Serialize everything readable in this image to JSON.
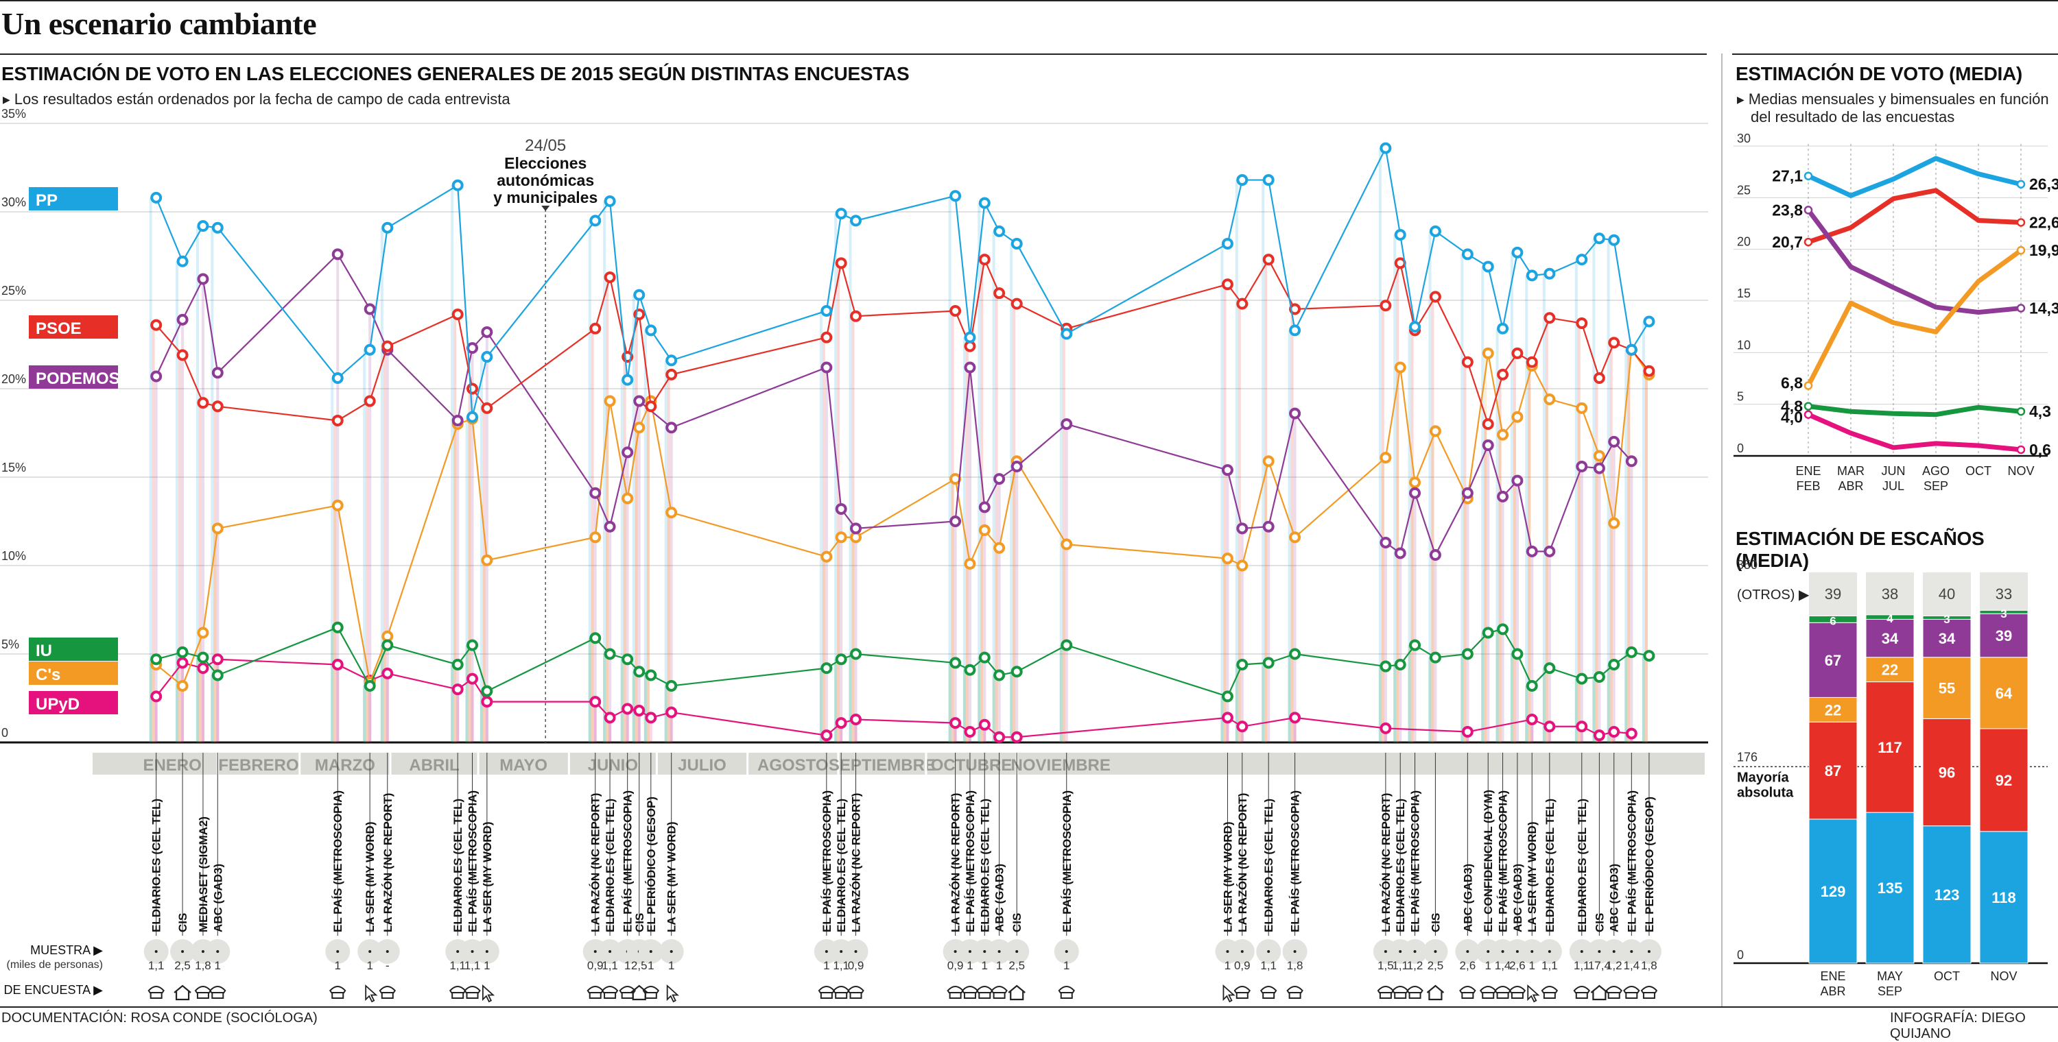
{
  "header": {
    "title": "Un escenario cambiante"
  },
  "main": {
    "title": "ESTIMACIÓN DE VOTO EN LAS ELECCIONES GENERALES DE 2015 SEGÚN DISTINTAS ENCUESTAS",
    "subtitle": "Los resultados están ordenados por la fecha de campo de cada entrevista",
    "annotation": {
      "date": "24/05",
      "lines": [
        "Elecciones",
        "autonómicas",
        "y municipales"
      ]
    },
    "muestra_label": "MUESTRA",
    "muestra_sub": "(miles de personas)",
    "tipo_label": "TIPO DE ENCUESTA"
  },
  "side": {
    "title1": "ESTIMACIÓN DE VOTO (MEDIA)",
    "sub1_lines": [
      "Medias mensuales y bimensuales en función",
      "del resultado de las encuestas"
    ],
    "title2": "ESTIMACIÓN DE ESCAÑOS (MEDIA)",
    "otros_label": "(OTROS)",
    "mayoria_lines": [
      "Mayoría",
      "absoluta"
    ]
  },
  "footer": {
    "left": "DOCUMENTACIÓN: ROSA CONDE (SOCIÓLOGA)",
    "right": "INFOGRAFÍA: DIEGO QUIJANO"
  },
  "colors": {
    "PP": "#1ba4e0",
    "PSOE": "#e63027",
    "PODEMOS": "#8e3a96",
    "IU": "#15963f",
    "Cs": "#f29a24",
    "UPyD": "#e5127d"
  },
  "chart_data": [
    {
      "type": "line",
      "title": "ESTIMACIÓN DE VOTO EN LAS ELECCIONES GENERALES DE 2015 SEGÚN DISTINTAS ENCUESTAS",
      "ylim": [
        0,
        35
      ],
      "yticks": [
        0,
        5,
        10,
        15,
        20,
        25,
        30,
        35
      ],
      "ytick_labels": [
        "0",
        "5%",
        "10%",
        "15%",
        "20%",
        "25%",
        "30%",
        "35%"
      ],
      "grid": true,
      "months": [
        "ENERO",
        "FEBRERO",
        "MARZO",
        "ABRIL",
        "MAYO",
        "JUNIO",
        "JULIO",
        "AGOSTO",
        "SEPTIEMBRE",
        "OCTUBRE",
        "NOVIEMBRE"
      ],
      "polls": [
        {
          "label": "ELDIARIO.ES (CEL TEL)",
          "muestra": "1,1",
          "tipo": "tel",
          "day": 10
        },
        {
          "label": "CIS",
          "muestra": "2,5",
          "tipo": "house",
          "day": 19
        },
        {
          "label": "MEDIASET (SIGMA2)",
          "muestra": "1,8",
          "tipo": "tel",
          "day": 26
        },
        {
          "label": "ABC (GAD3)",
          "muestra": "1",
          "tipo": "tel",
          "day": 31
        },
        {
          "label": "EL PAÍS (METROSCOPIA)",
          "muestra": "1",
          "tipo": "tel",
          "day": 72
        },
        {
          "label": "LA SER (MY WORD)",
          "muestra": "1",
          "tipo": "cursor",
          "day": 83
        },
        {
          "label": "LA RAZÓN (NC REPORT)",
          "muestra": "-",
          "tipo": "tel",
          "day": 89
        },
        {
          "label": "ELDIARIO.ES (CEL TEL)",
          "muestra": "1,1",
          "tipo": "tel",
          "day": 113
        },
        {
          "label": "EL PAÍS (METROSCOPIA)",
          "muestra": "1,1",
          "tipo": "tel",
          "day": 118
        },
        {
          "label": "LA SER (MY WORD)",
          "muestra": "1",
          "tipo": "cursor",
          "day": 123
        },
        {
          "label": "LA RAZÓN (NC REPORT)",
          "muestra": "0,9",
          "tipo": "tel",
          "day": 160
        },
        {
          "label": "ELDIARIO.ES (CEL TEL)",
          "muestra": "1,1",
          "tipo": "tel",
          "day": 165
        },
        {
          "label": "EL PAÍS (METROSCOPIA)",
          "muestra": "1",
          "tipo": "tel",
          "day": 171
        },
        {
          "label": "CIS",
          "muestra": "2,5",
          "tipo": "house",
          "day": 175
        },
        {
          "label": "EL PERIÓDICO (GESOP)",
          "muestra": "1",
          "tipo": "tel",
          "day": 179
        },
        {
          "label": "LA SER (MY WORD)",
          "muestra": "1",
          "tipo": "cursor",
          "day": 186
        },
        {
          "label": "EL PAÍS (METROSCOPIA)",
          "muestra": "1",
          "tipo": "tel",
          "day": 239
        },
        {
          "label": "ELDIARIO.ES (CEL TEL)",
          "muestra": "1,1",
          "tipo": "tel",
          "day": 244
        },
        {
          "label": "LA RAZÓN (NC REPORT)",
          "muestra": "0,9",
          "tipo": "tel",
          "day": 249
        },
        {
          "label": "LA RAZÓN (NC REPORT)",
          "muestra": "0,9",
          "tipo": "tel",
          "day": 283
        },
        {
          "label": "EL PAÍS (METROSCOPIA)",
          "muestra": "1",
          "tipo": "tel",
          "day": 288
        },
        {
          "label": "ELDIARIO.ES (CEL TEL)",
          "muestra": "1",
          "tipo": "tel",
          "day": 293
        },
        {
          "label": "ABC (GAD3)",
          "muestra": "1",
          "tipo": "tel",
          "day": 298
        },
        {
          "label": "CIS",
          "muestra": "2,5",
          "tipo": "house",
          "day": 304
        },
        {
          "label": "EL PAÍS (METROSCOPIA)",
          "muestra": "1",
          "tipo": "tel",
          "day": 321
        },
        {
          "label": "LA SER (MY WORD)",
          "muestra": "1",
          "tipo": "cursor",
          "day": 376
        },
        {
          "label": "LA RAZÓN (NC REPORT)",
          "muestra": "0,9",
          "tipo": "tel",
          "day": 381
        },
        {
          "label": "ELDIARIO.ES (CEL TEL)",
          "muestra": "1,1",
          "tipo": "tel",
          "day": 390
        },
        {
          "label": "EL PAÍS (METROSCOPIA)",
          "muestra": "1,8",
          "tipo": "tel",
          "day": 399
        },
        {
          "label": "LA RAZÓN (NC REPORT)",
          "muestra": "1,5",
          "tipo": "tel",
          "day": 430
        },
        {
          "label": "ELDIARIO.ES (CEL TEL)",
          "muestra": "1,1",
          "tipo": "tel",
          "day": 435
        },
        {
          "label": "EL PAÍS (METROSCOPIA)",
          "muestra": "1,2",
          "tipo": "tel",
          "day": 440
        },
        {
          "label": "CIS",
          "muestra": "2,5",
          "tipo": "house",
          "day": 447
        },
        {
          "label": "ABC (GAD3)",
          "muestra": "2,6",
          "tipo": "tel",
          "day": 458
        },
        {
          "label": "EL CONFIDENCIAL (DYM)",
          "muestra": "1",
          "tipo": "tel",
          "day": 465
        },
        {
          "label": "EL PAÍS (METROSCOPIA)",
          "muestra": "1,4",
          "tipo": "tel",
          "day": 470
        },
        {
          "label": "ABC (GAD3)",
          "muestra": "2,6",
          "tipo": "tel",
          "day": 475
        },
        {
          "label": "LA SER (MY WORD)",
          "muestra": "1",
          "tipo": "cursor",
          "day": 480
        },
        {
          "label": "ELDIARIO.ES (CEL TEL)",
          "muestra": "1,1",
          "tipo": "tel",
          "day": 486
        },
        {
          "label": "ELDIARIO.ES (CEL TEL)",
          "muestra": "1,1",
          "tipo": "tel",
          "day": 497
        },
        {
          "label": "CIS",
          "muestra": "17,4",
          "tipo": "house",
          "day": 503
        },
        {
          "label": "ABC (GAD3)",
          "muestra": "1,2",
          "tipo": "tel",
          "day": 508
        },
        {
          "label": "EL PAÍS (METROSCOPIA)",
          "muestra": "1,4",
          "tipo": "tel",
          "day": 514
        },
        {
          "label": "EL PERIÓDICO (GESOP)",
          "muestra": "1,8",
          "tipo": "tel",
          "day": 520
        }
      ],
      "series": [
        {
          "name": "PP",
          "values": [
            30.8,
            27.2,
            29.2,
            29.1,
            20.6,
            22.2,
            29.1,
            31.5,
            18.4,
            21.8,
            29.5,
            30.6,
            20.5,
            25.3,
            23.3,
            21.6,
            24.4,
            29.9,
            29.5,
            30.9,
            22.9,
            30.5,
            28.9,
            28.2,
            23.1,
            28.2,
            31.8,
            31.8,
            23.3,
            33.6,
            28.7,
            23.5,
            28.9,
            27.6,
            26.9,
            23.4,
            27.7,
            26.4,
            26.5,
            27.3,
            28.5,
            28.4,
            22.2,
            23.8
          ]
        },
        {
          "name": "PSOE",
          "values": [
            23.6,
            21.9,
            19.2,
            19.0,
            18.2,
            19.3,
            22.4,
            24.2,
            20.0,
            18.9,
            23.4,
            26.3,
            21.8,
            24.2,
            19.0,
            20.8,
            22.9,
            27.1,
            24.1,
            24.4,
            22.4,
            27.3,
            25.4,
            24.8,
            23.4,
            25.9,
            24.8,
            27.3,
            24.5,
            24.7,
            27.1,
            23.3,
            25.2,
            21.5,
            18.0,
            20.8,
            22.0,
            21.5,
            24.0,
            23.7,
            20.6,
            22.6,
            22.2,
            21.0
          ]
        },
        {
          "name": "PODEMOS",
          "values": [
            20.7,
            23.9,
            26.2,
            20.9,
            27.6,
            24.5,
            22.2,
            18.2,
            22.3,
            23.2,
            14.1,
            12.2,
            16.4,
            19.3,
            17.8,
            21.2,
            13.2,
            12.1,
            12.5,
            21.2,
            13.3,
            14.9,
            15.6,
            18.0,
            15.4,
            12.1,
            12.2,
            18.6,
            11.3,
            10.7,
            14.1,
            10.6,
            14.1,
            16.8,
            13.9,
            14.8,
            10.8,
            10.8,
            15.6,
            15.5,
            17.0,
            15.9
          ]
        },
        {
          "name": "IU",
          "values": [
            4.7,
            5.1,
            4.8,
            3.8,
            6.5,
            3.2,
            5.5,
            4.4,
            5.5,
            2.9,
            5.9,
            5.0,
            4.7,
            4.0,
            3.8,
            3.2,
            4.2,
            4.7,
            5.0,
            4.5,
            4.1,
            4.8,
            3.8,
            4.0,
            5.5,
            2.6,
            4.4,
            4.5,
            5.0,
            4.3,
            4.4,
            5.5,
            4.8,
            5.0,
            6.2,
            6.4,
            5.0,
            3.2,
            4.2,
            3.6,
            3.7,
            4.4,
            5.1,
            4.9
          ]
        },
        {
          "name": "C's",
          "values": [
            4.4,
            3.2,
            6.2,
            12.1,
            13.4,
            3.4,
            6.0,
            18.0,
            18.3,
            10.3,
            11.6,
            19.3,
            13.8,
            17.8,
            19.3,
            13.0,
            10.5,
            11.6,
            11.6,
            14.9,
            10.1,
            12.0,
            11.0,
            15.9,
            11.2,
            10.4,
            10.0,
            15.9,
            11.6,
            16.1,
            21.2,
            14.7,
            17.6,
            13.8,
            22.0,
            17.4,
            18.4,
            21.3,
            19.4,
            18.9,
            16.2,
            12.4,
            22.2,
            20.8
          ]
        },
        {
          "name": "UPyD",
          "values": [
            2.6,
            4.5,
            4.2,
            4.7,
            4.4,
            3.5,
            3.9,
            3.0,
            3.6,
            2.3,
            2.3,
            1.4,
            1.9,
            1.8,
            1.4,
            1.7,
            0.4,
            1.1,
            1.3,
            1.1,
            0.6,
            1.0,
            0.3,
            0.3,
            1.4,
            0.9,
            1.4,
            0.8,
            0.6,
            1.3,
            0.9,
            0.9,
            0.4,
            0.6,
            0.5
          ]
        }
      ],
      "series_poll_index": {
        "PODEMOS": [
          0,
          1,
          2,
          3,
          4,
          5,
          6,
          7,
          8,
          9,
          10,
          11,
          12,
          13,
          15,
          16,
          17,
          18,
          19,
          20,
          21,
          22,
          23,
          24,
          25,
          26,
          27,
          28,
          29,
          30,
          31,
          32,
          33,
          34,
          35,
          36,
          37,
          38,
          39,
          40,
          41,
          42
        ],
        "UPyD": [
          0,
          1,
          2,
          3,
          4,
          5,
          6,
          7,
          8,
          9,
          10,
          11,
          12,
          13,
          14,
          15,
          16,
          17,
          18,
          19,
          20,
          21,
          22,
          23,
          25,
          26,
          28,
          29,
          33,
          37,
          38,
          39,
          40,
          41,
          42
        ]
      },
      "legend": [
        "PP",
        "PSOE",
        "PODEMOS",
        "IU",
        "C's",
        "UPyD"
      ]
    },
    {
      "type": "line",
      "title": "ESTIMACIÓN DE VOTO (MEDIA)",
      "ylim": [
        0,
        30
      ],
      "yticks": [
        0,
        5,
        10,
        15,
        20,
        25,
        30
      ],
      "categories": [
        "ENE FEB",
        "MAR ABR",
        "JUN JUL",
        "AGO SEP",
        "OCT",
        "NOV"
      ],
      "series": [
        {
          "name": "PP",
          "values": [
            27.1,
            25.2,
            26.8,
            28.8,
            27.3,
            26.3
          ],
          "start_label": "27,1",
          "end_label": "26,3"
        },
        {
          "name": "PSOE",
          "values": [
            20.7,
            22.1,
            24.9,
            25.7,
            22.8,
            22.6
          ],
          "start_label": "20,7",
          "end_label": "22,6"
        },
        {
          "name": "PODEMOS",
          "values": [
            23.8,
            18.3,
            16.3,
            14.4,
            13.9,
            14.3
          ],
          "start_label": "23,8",
          "end_label": "14,3"
        },
        {
          "name": "C's",
          "values": [
            6.8,
            14.8,
            12.9,
            12.0,
            16.9,
            19.9
          ],
          "start_label": "6,8",
          "end_label": "19,9"
        },
        {
          "name": "IU",
          "values": [
            4.8,
            4.3,
            4.1,
            4.0,
            4.7,
            4.3
          ],
          "start_label": "4,8",
          "end_label": "4,3"
        },
        {
          "name": "UPyD",
          "values": [
            4.0,
            2.2,
            0.8,
            1.2,
            1.0,
            0.6
          ],
          "start_label": "4,0",
          "end_label": "0,6"
        }
      ]
    },
    {
      "type": "bar",
      "stacked": true,
      "title": "ESTIMACIÓN DE ESCAÑOS (MEDIA)",
      "ylim": [
        0,
        350
      ],
      "yticks": [
        0,
        176,
        350
      ],
      "majority": 176,
      "categories": [
        "ENE ABR",
        "MAY SEP",
        "OCT",
        "NOV"
      ],
      "series": [
        {
          "name": "PP",
          "values": [
            129,
            135,
            123,
            118
          ]
        },
        {
          "name": "PSOE",
          "values": [
            87,
            117,
            96,
            92
          ]
        },
        {
          "name": "C's",
          "values": [
            22,
            22,
            55,
            64
          ]
        },
        {
          "name": "PODEMOS",
          "values": [
            67,
            34,
            34,
            39
          ]
        },
        {
          "name": "IU",
          "values": [
            6,
            4,
            3,
            3
          ]
        },
        {
          "name": "OTROS",
          "values": [
            39,
            38,
            40,
            33
          ]
        }
      ]
    }
  ]
}
